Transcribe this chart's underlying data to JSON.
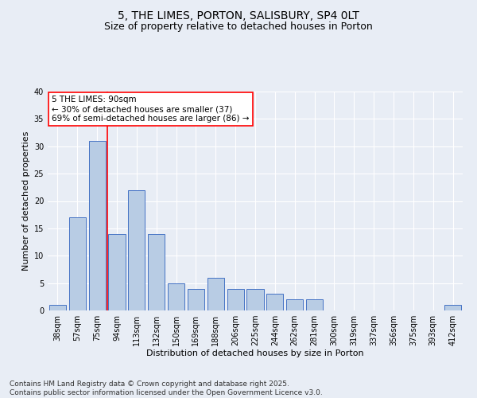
{
  "title": "5, THE LIMES, PORTON, SALISBURY, SP4 0LT",
  "subtitle": "Size of property relative to detached houses in Porton",
  "xlabel": "Distribution of detached houses by size in Porton",
  "ylabel": "Number of detached properties",
  "categories": [
    "38sqm",
    "57sqm",
    "75sqm",
    "94sqm",
    "113sqm",
    "132sqm",
    "150sqm",
    "169sqm",
    "188sqm",
    "206sqm",
    "225sqm",
    "244sqm",
    "262sqm",
    "281sqm",
    "300sqm",
    "319sqm",
    "337sqm",
    "356sqm",
    "375sqm",
    "393sqm",
    "412sqm"
  ],
  "values": [
    1,
    17,
    31,
    14,
    22,
    14,
    5,
    4,
    6,
    4,
    4,
    3,
    2,
    2,
    0,
    0,
    0,
    0,
    0,
    0,
    1
  ],
  "bar_color": "#b8cce4",
  "bar_edge_color": "#4472c4",
  "red_line_index": 2,
  "ylim": [
    0,
    40
  ],
  "yticks": [
    0,
    5,
    10,
    15,
    20,
    25,
    30,
    35,
    40
  ],
  "annotation_title": "5 THE LIMES: 90sqm",
  "annotation_line1": "← 30% of detached houses are smaller (37)",
  "annotation_line2": "69% of semi-detached houses are larger (86) →",
  "footer_line1": "Contains HM Land Registry data © Crown copyright and database right 2025.",
  "footer_line2": "Contains public sector information licensed under the Open Government Licence v3.0.",
  "background_color": "#e8edf5",
  "plot_background_color": "#e8edf5",
  "grid_color": "#ffffff",
  "title_fontsize": 10,
  "subtitle_fontsize": 9,
  "axis_label_fontsize": 8,
  "tick_fontsize": 7,
  "annotation_fontsize": 7.5,
  "footer_fontsize": 6.5
}
